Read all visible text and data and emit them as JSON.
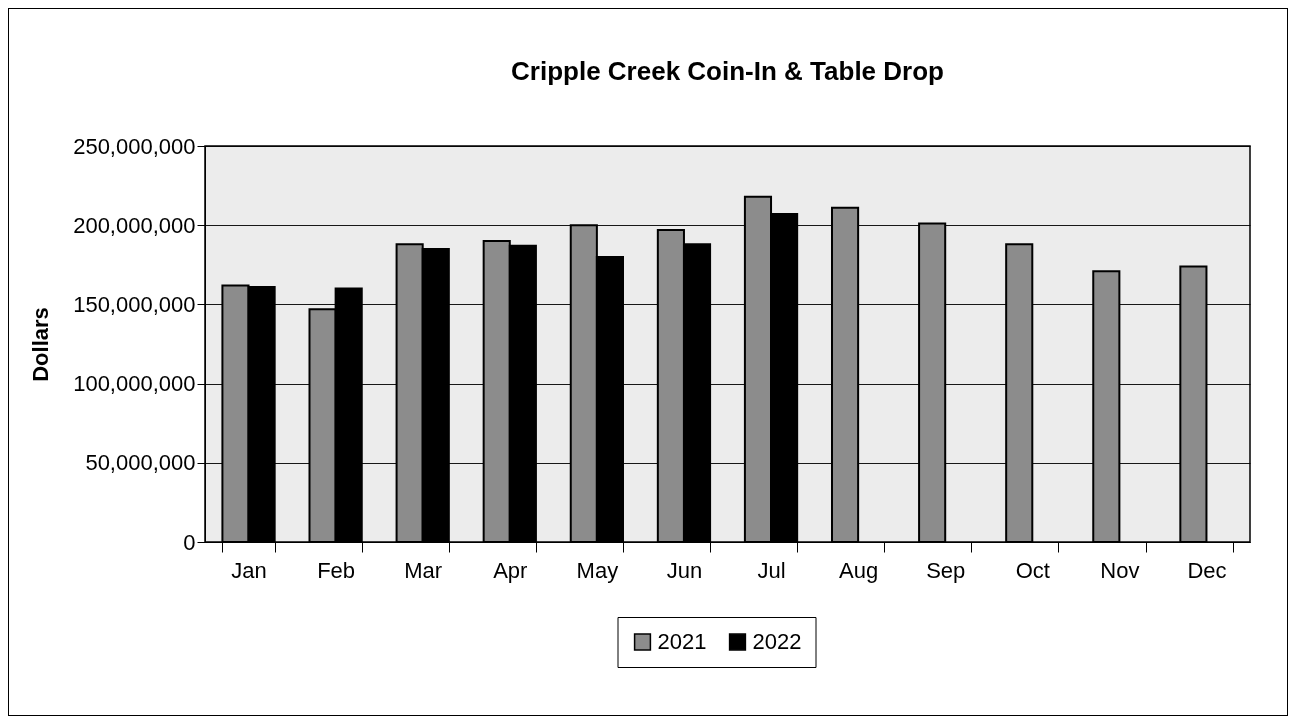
{
  "chart_data": {
    "type": "bar",
    "title": "Cripple Creek Coin-In & Table Drop",
    "ylabel": "Dollars",
    "categories": [
      "Jan",
      "Feb",
      "Mar",
      "Apr",
      "May",
      "Jun",
      "Jul",
      "Aug",
      "Sep",
      "Oct",
      "Nov",
      "Dec"
    ],
    "series": [
      {
        "name": "2021",
        "color": "#8c8c8c",
        "values": [
          162000000,
          147000000,
          188000000,
          190000000,
          200000000,
          197000000,
          218000000,
          211000000,
          201000000,
          188000000,
          171000000,
          174000000
        ]
      },
      {
        "name": "2022",
        "color": "#000000",
        "values": [
          161000000,
          160000000,
          185000000,
          187000000,
          180000000,
          188000000,
          207000000,
          null,
          null,
          null,
          null,
          null
        ]
      }
    ],
    "ylim": [
      0,
      250000000
    ],
    "yticks": [
      0,
      {
        "value": 50000000,
        "label": "50,000,000"
      },
      {
        "value": 100000000,
        "label": "100,000,000"
      },
      {
        "value": 150000000,
        "label": "150,000,000"
      },
      {
        "value": 200000000,
        "label": "200,000,000"
      },
      {
        "value": 250000000,
        "label": "250,000,000"
      }
    ],
    "grid": "y",
    "legend": "bottom"
  }
}
